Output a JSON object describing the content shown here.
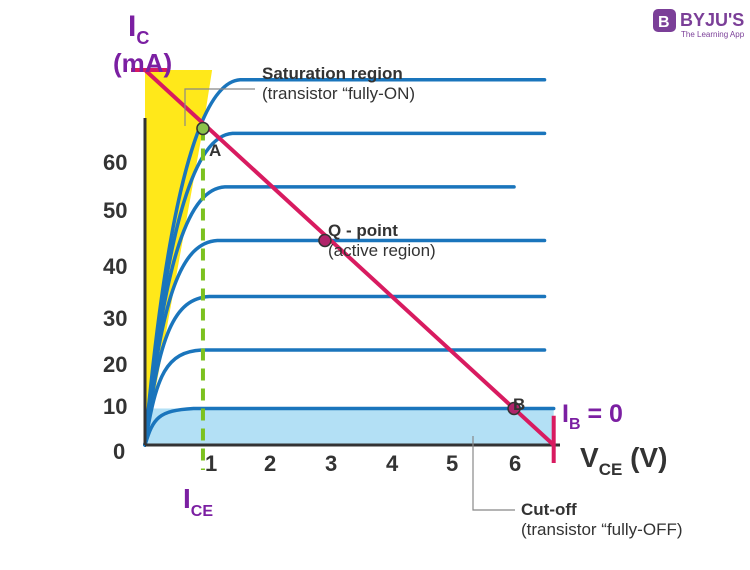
{
  "logo": {
    "name": "BYJU'S",
    "tagline": "The Learning App",
    "color": "#7b3f98"
  },
  "axes": {
    "y_label": "I",
    "y_label_sub": "C",
    "y_unit": "(mA)",
    "x_label": "V",
    "x_label_sub": "CE",
    "x_unit": " (V)",
    "x_ticks": [
      "1",
      "2",
      "3",
      "4",
      "5",
      "6"
    ],
    "y_ticks": [
      "10",
      "20",
      "30",
      "40",
      "50",
      "60"
    ],
    "origin": "0",
    "ylim": [
      0,
      80
    ],
    "xlim": [
      0,
      6.7
    ]
  },
  "annotations": {
    "saturation_title": "Saturation region",
    "saturation_sub": "(transistor “fully-ON)",
    "qpoint_title": "Q - point",
    "qpoint_sub": "(active region)",
    "cutoff_title": "Cut-off",
    "cutoff_sub": "(transistor “fully-OFF)",
    "ib_label": "I",
    "ib_sub": "B",
    "ib_value": " = 0",
    "ice_label": "I",
    "ice_sub": "CE",
    "point_a": "A",
    "point_b": "B"
  },
  "colors": {
    "curve": "#1a75bc",
    "load_line": "#d81b60",
    "saturation_fill": "#ffe81a",
    "cutoff_fill": "#b3e0f5",
    "ice_dash": "#7cc11f",
    "point_a_fill": "#8bc34a",
    "point_q_fill": "#b0246a",
    "purple": "#7b1fa2"
  },
  "chart_data": {
    "type": "line",
    "series": [
      {
        "name": "curve-1",
        "plateau": 7.5
      },
      {
        "name": "curve-2",
        "plateau": 19.5
      },
      {
        "name": "curve-3",
        "plateau": 30.5
      },
      {
        "name": "curve-4",
        "plateau": 42
      },
      {
        "name": "curve-5",
        "plateau": 53
      },
      {
        "name": "curve-6",
        "plateau": 64
      },
      {
        "name": "curve-7",
        "plateau": 75
      }
    ],
    "load_line": {
      "x": [
        0,
        6.7
      ],
      "y": [
        77,
        0
      ]
    },
    "points": [
      {
        "name": "A",
        "x": 0.95,
        "y": 65
      },
      {
        "name": "Q",
        "x": 2.95,
        "y": 42
      },
      {
        "name": "B",
        "x": 6.05,
        "y": 7.5
      }
    ],
    "ice_x": 0.95
  }
}
